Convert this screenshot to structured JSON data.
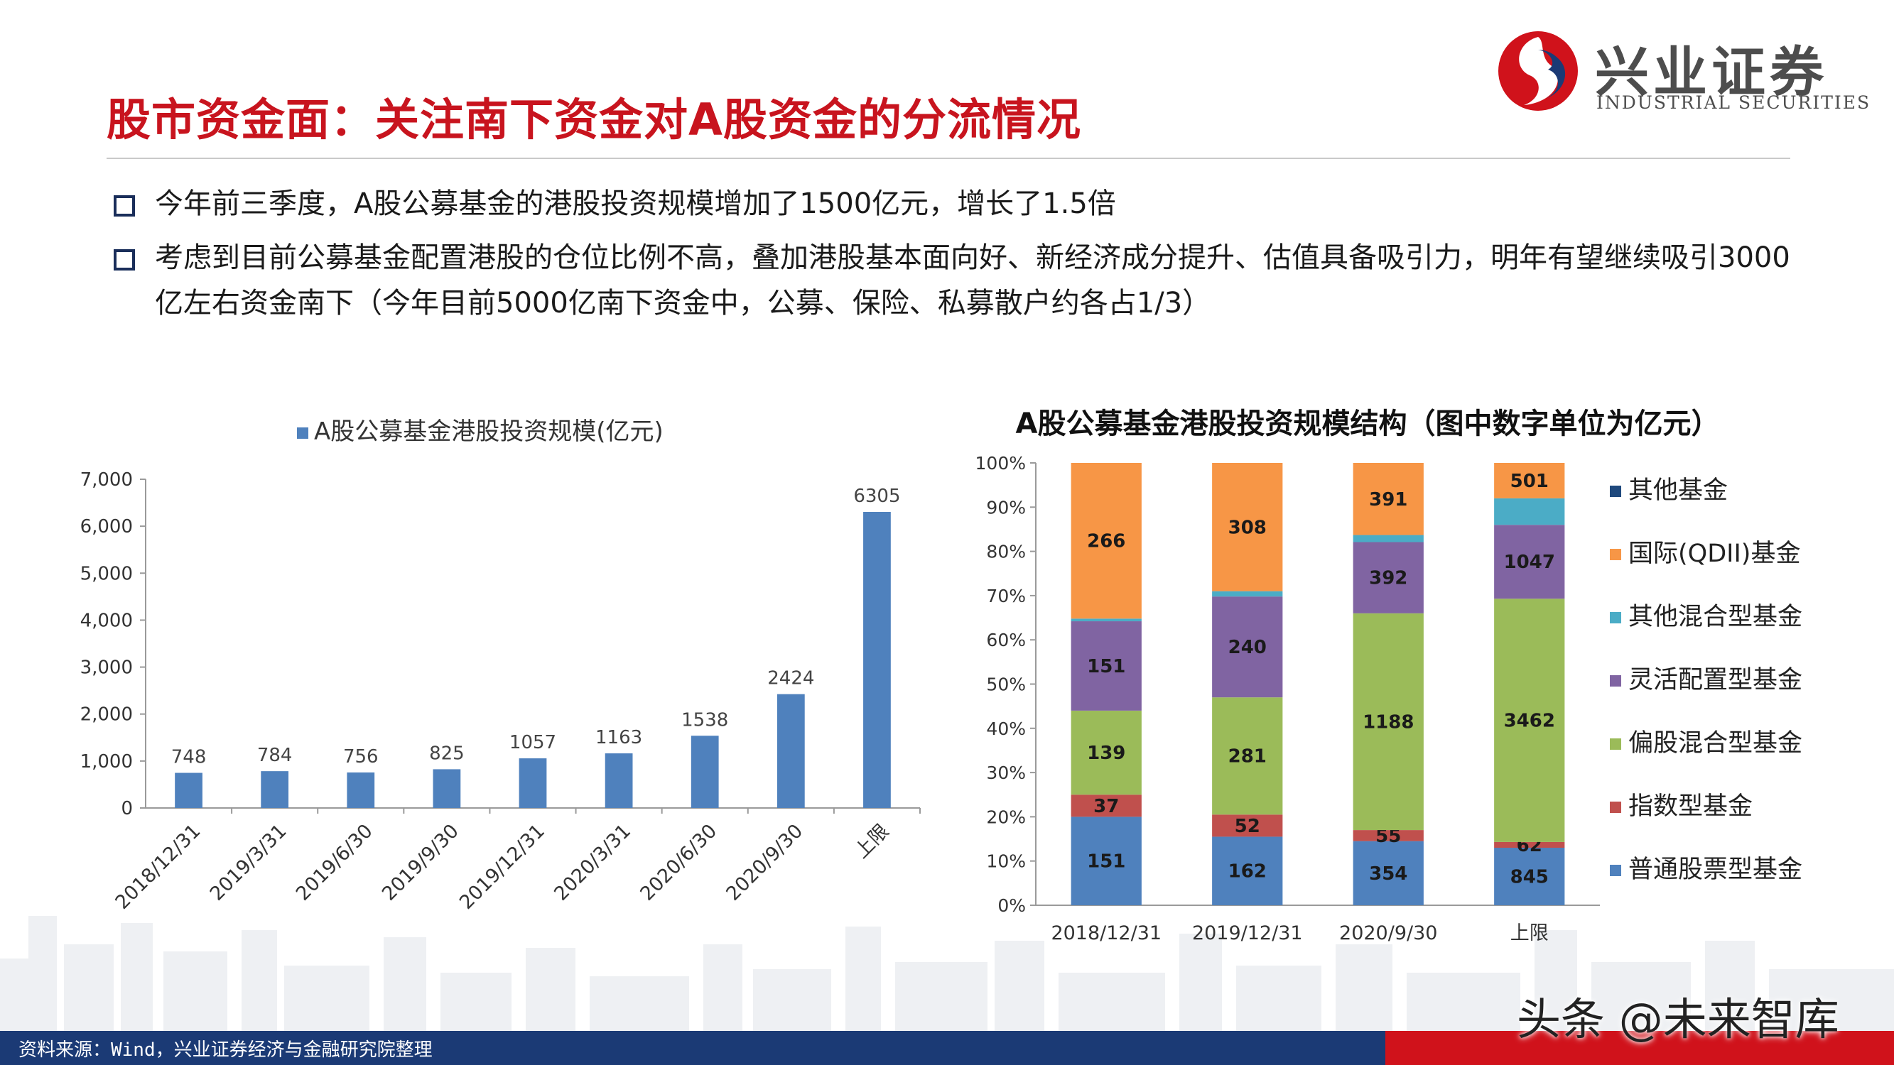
{
  "header": {
    "title": "股市资金面：关注南下资金对A股资金的分流情况",
    "logo_cn": "兴业证券",
    "logo_en": "INDUSTRIAL SECURITIES"
  },
  "bullets": [
    "今年前三季度，A股公募基金的港股投资规模增加了1500亿元，增长了1.5倍",
    "考虑到目前公募基金配置港股的仓位比例不高，叠加港股基本面向好、新经济成分提升、估值具备吸引力，明年有望继续吸引3000亿左右资金南下（今年目前5000亿南下资金中，公募、保险、私募散户约各占1/3）"
  ],
  "chart_data": [
    {
      "type": "bar",
      "title": "",
      "legend": [
        "A股公募基金港股投资规模(亿元)"
      ],
      "legend_position": "top",
      "categories": [
        "2018/12/31",
        "2019/3/31",
        "2019/6/30",
        "2019/9/30",
        "2019/12/31",
        "2020/3/31",
        "2020/6/30",
        "2020/9/30",
        "上限"
      ],
      "values": [
        748,
        784,
        756,
        825,
        1057,
        1163,
        1538,
        2424,
        6305
      ],
      "ylim": [
        0,
        7000
      ],
      "yticks": [
        "0",
        "1,000",
        "2,000",
        "3,000",
        "4,000",
        "5,000",
        "6,000",
        "7,000"
      ],
      "grid": false,
      "color": "#4f81bd"
    },
    {
      "type": "bar",
      "stacked": "percent",
      "title": "A股公募基金港股投资规模结构（图中数字单位为亿元）",
      "categories": [
        "2018/12/31",
        "2019/12/31",
        "2020/9/30",
        "上限"
      ],
      "ylim": [
        0,
        100
      ],
      "yticks": [
        "0%",
        "10%",
        "20%",
        "30%",
        "40%",
        "50%",
        "60%",
        "70%",
        "80%",
        "90%",
        "100%"
      ],
      "legend_position": "right",
      "series": [
        {
          "name": "普通股票型基金",
          "color": "#4f81bd",
          "labels": [
            "151",
            "162",
            "354",
            "845"
          ],
          "percent": [
            20,
            15.5,
            14.5,
            13
          ]
        },
        {
          "name": "指数型基金",
          "color": "#c0504d",
          "labels": [
            "37",
            "52",
            "55",
            "62"
          ],
          "percent": [
            5,
            5,
            2.5,
            1.3
          ]
        },
        {
          "name": "偏股混合型基金",
          "color": "#9bbb59",
          "labels": [
            "139",
            "281",
            "1188",
            "3462"
          ],
          "percent": [
            19,
            26.5,
            49,
            55
          ]
        },
        {
          "name": "灵活配置型基金",
          "color": "#8064a2",
          "labels": [
            "151",
            "240",
            "392",
            "1047"
          ],
          "percent": [
            20.2,
            22.8,
            16.1,
            16.7
          ]
        },
        {
          "name": "其他混合型基金",
          "color": "#4bacc6",
          "labels": [
            "",
            "",
            "",
            ""
          ],
          "percent": [
            0.6,
            1.2,
            1.6,
            6
          ]
        },
        {
          "name": "国际(QDII)基金",
          "color": "#f79646",
          "labels": [
            "266",
            "308",
            "391",
            "501"
          ],
          "percent": [
            35.2,
            29,
            16.3,
            8
          ]
        },
        {
          "name": "其他基金",
          "color": "#1f497d",
          "labels": [
            "",
            "",
            "",
            ""
          ],
          "percent": [
            0,
            0,
            0,
            0
          ]
        }
      ]
    }
  ],
  "footer": {
    "source": "资料来源：Wind，兴业证券经济与金融研究院整理",
    "watermark": "头条 @未来智库"
  }
}
